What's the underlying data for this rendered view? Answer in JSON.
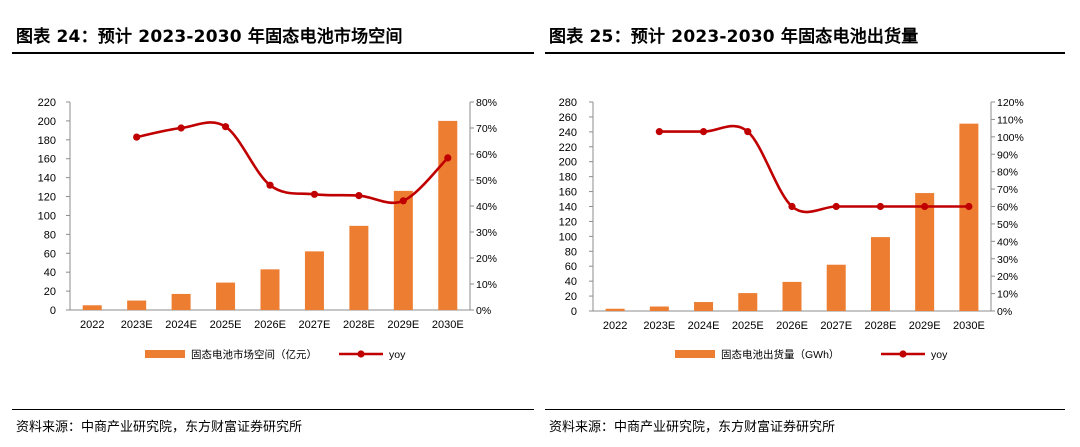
{
  "chart_data": [
    {
      "type": "bar",
      "title": "图表 24：预计 2023-2030 年固态电池市场空间",
      "source": "资料来源：中商产业研究院，东方财富证券研究所",
      "categories": [
        "2022",
        "2023E",
        "2024E",
        "2025E",
        "2026E",
        "2027E",
        "2028E",
        "2029E",
        "2030E"
      ],
      "y_ticks": [
        "0",
        "20",
        "40",
        "60",
        "80",
        "100",
        "120",
        "140",
        "160",
        "180",
        "200",
        "220"
      ],
      "y2_ticks": [
        "0%",
        "10%",
        "20%",
        "30%",
        "40%",
        "50%",
        "60%",
        "70%",
        "80%"
      ],
      "ylim": [
        0,
        220
      ],
      "y2lim": [
        0,
        80
      ],
      "series": [
        {
          "name": "固态电池市场空间（亿元）",
          "kind": "bar",
          "axis": "left",
          "color": "#ED7D31",
          "values": [
            5,
            10,
            17,
            29,
            43,
            62,
            89,
            126,
            200
          ]
        },
        {
          "name": "yoy",
          "kind": "line",
          "axis": "right",
          "color": "#C00000",
          "values": [
            null,
            66.5,
            70,
            70.5,
            48,
            44.5,
            44,
            42,
            58.5
          ]
        }
      ]
    },
    {
      "type": "bar",
      "title": "图表 25：预计 2023-2030 年固态电池出货量",
      "source": "资料来源：中商产业研究院，东方财富证券研究所",
      "categories": [
        "2022",
        "2023E",
        "2024E",
        "2025E",
        "2026E",
        "2027E",
        "2028E",
        "2029E",
        "2030E"
      ],
      "y_ticks": [
        "0",
        "20",
        "40",
        "60",
        "80",
        "100",
        "120",
        "140",
        "160",
        "180",
        "200",
        "220",
        "240",
        "260",
        "280"
      ],
      "y2_ticks": [
        "0%",
        "10%",
        "20%",
        "30%",
        "40%",
        "50%",
        "60%",
        "70%",
        "80%",
        "90%",
        "100%",
        "110%",
        "120%"
      ],
      "ylim": [
        0,
        280
      ],
      "y2lim": [
        0,
        120
      ],
      "series": [
        {
          "name": "固态电池出货量（GWh）",
          "kind": "bar",
          "axis": "left",
          "color": "#ED7D31",
          "values": [
            3,
            6,
            12,
            24,
            39,
            62,
            99,
            158,
            251
          ]
        },
        {
          "name": "yoy",
          "kind": "line",
          "axis": "right",
          "color": "#C00000",
          "values": [
            null,
            103,
            103,
            103,
            60,
            60,
            60,
            60,
            60
          ]
        }
      ]
    }
  ]
}
